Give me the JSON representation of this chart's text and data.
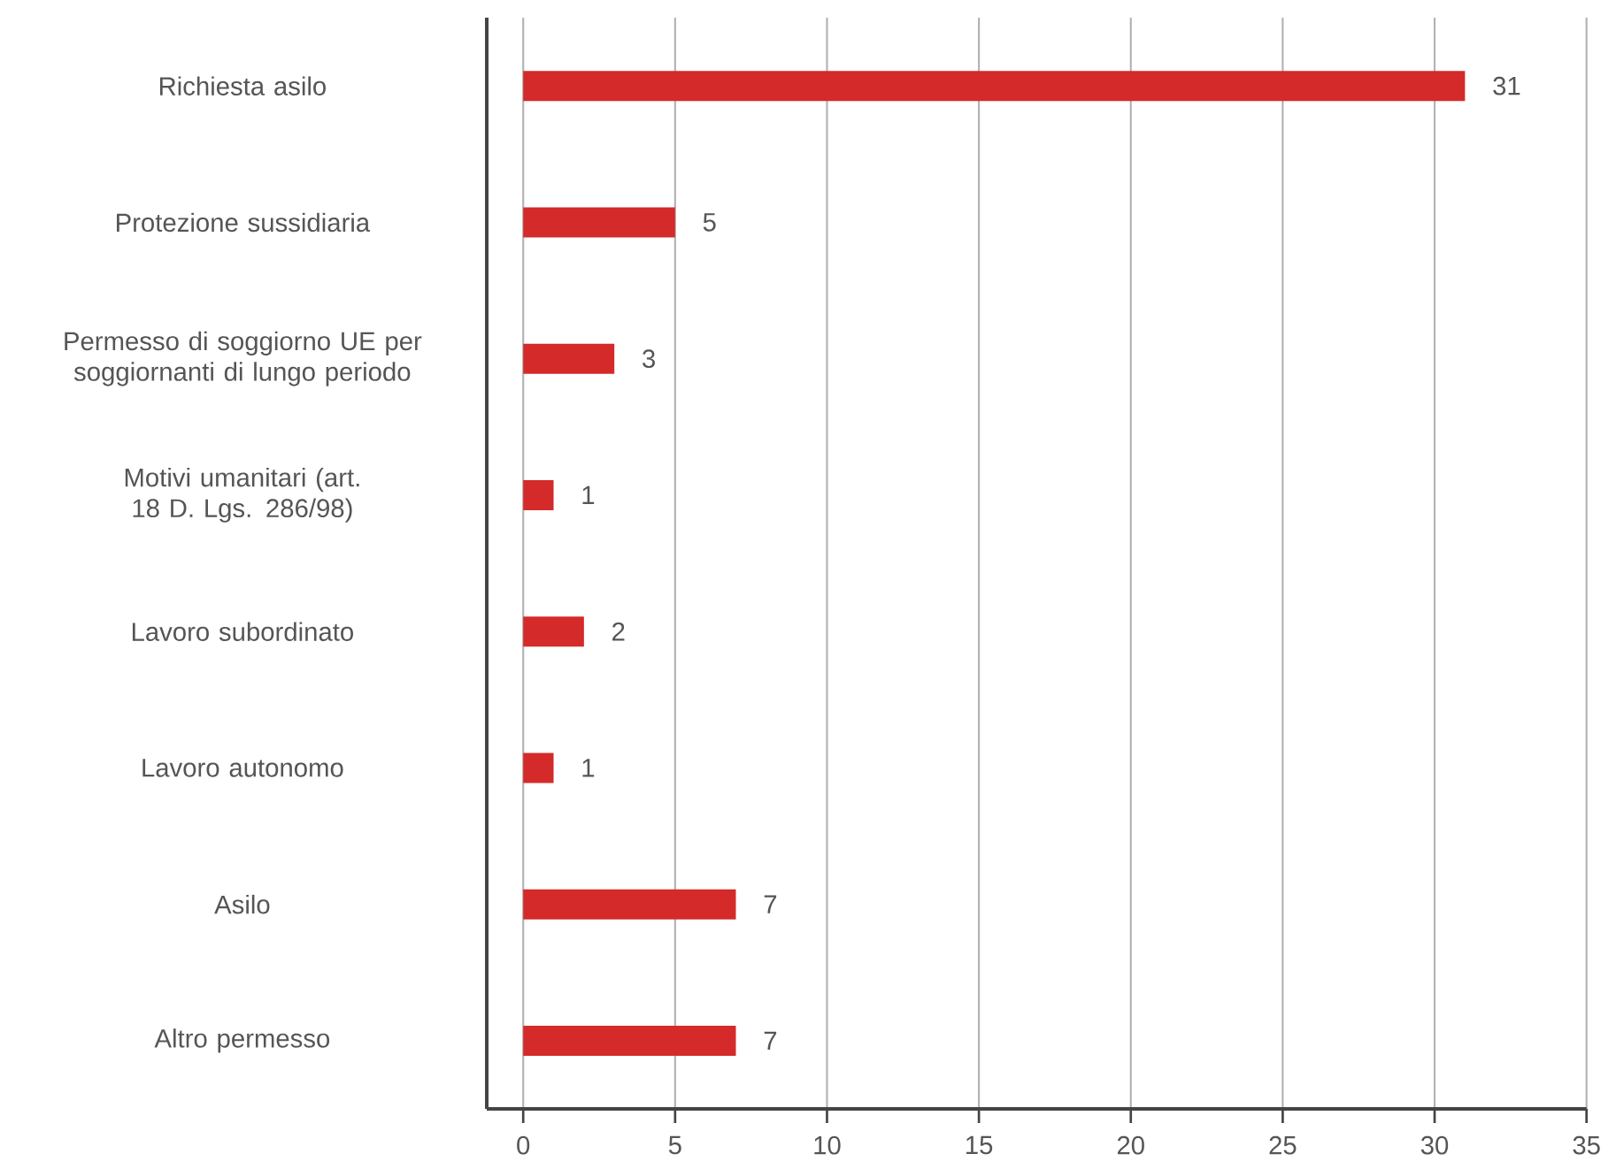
{
  "chart_data": {
    "type": "bar",
    "orientation": "horizontal",
    "categories": [
      "Richiesta asilo",
      "Protezione sussidiaria",
      "Permesso di soggiorno UE per soggiornanti di lungo periodo",
      "Motivi umanitari (art. 18 D. Lgs. 286/98)",
      "Lavoro subordinato",
      "Lavoro autonomo",
      "Asilo",
      "Altro permesso"
    ],
    "values": [
      31,
      5,
      3,
      1,
      2,
      1,
      7,
      7
    ],
    "color": "#d42a2a",
    "xlim": [
      -1.2,
      35
    ],
    "xticks": [
      0,
      5,
      10,
      15,
      20,
      25,
      30,
      35
    ],
    "grid": "x",
    "data_labels": true
  }
}
